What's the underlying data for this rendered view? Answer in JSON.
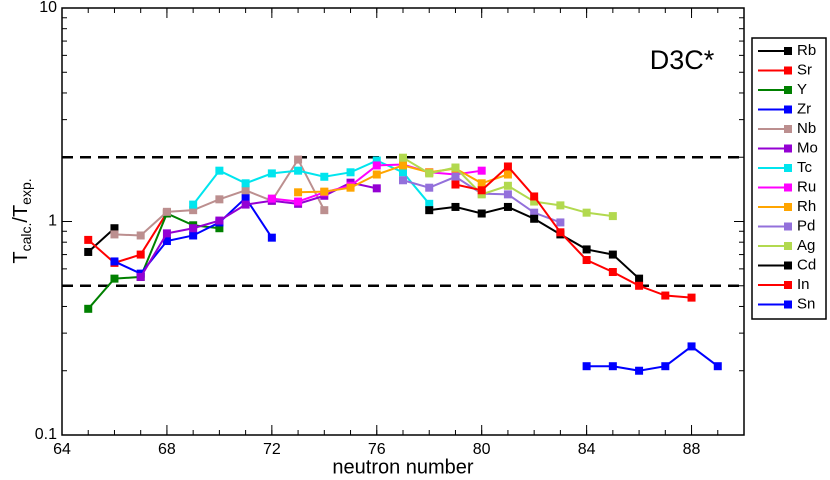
{
  "chart_data": {
    "type": "line",
    "annotation": "D3C*",
    "xlabel": "neutron number",
    "ylabel": {
      "main1": "T",
      "sub1": "calc.",
      "main2": "/T",
      "sub2": "exp."
    },
    "xlim": [
      64,
      90
    ],
    "xticks": [
      64,
      68,
      72,
      76,
      80,
      84,
      88
    ],
    "ylim": [
      0.1,
      10
    ],
    "yticks": [
      0.1,
      1,
      10
    ],
    "ylog": true,
    "reference_lines": [
      2,
      0.5
    ],
    "legend": "right",
    "series": [
      {
        "name": "Rb",
        "color": "#000000",
        "x": [
          65,
          66
        ],
        "values": [
          0.72,
          0.93
        ]
      },
      {
        "name": "Sr",
        "color": "#ff0000",
        "x": [
          65,
          66,
          67,
          68
        ],
        "values": [
          0.82,
          0.64,
          0.7,
          1.1
        ]
      },
      {
        "name": "Y",
        "color": "#008000",
        "x": [
          65,
          66,
          67,
          68,
          69,
          70
        ],
        "values": [
          0.39,
          0.54,
          0.55,
          1.09,
          0.96,
          0.93
        ]
      },
      {
        "name": "Zr",
        "color": "#0000ff",
        "x": [
          66,
          67,
          68,
          69,
          70,
          71,
          72
        ],
        "values": [
          0.65,
          0.57,
          0.81,
          0.86,
          0.99,
          1.29,
          0.84
        ]
      },
      {
        "name": "Nb",
        "color": "#bc8f8f",
        "x": [
          66,
          67,
          68,
          69,
          70,
          71,
          72,
          73,
          74
        ],
        "values": [
          0.87,
          0.86,
          1.11,
          1.13,
          1.27,
          1.4,
          1.25,
          1.95,
          1.13
        ]
      },
      {
        "name": "Mo",
        "color": "#9400d3",
        "x": [
          67,
          68,
          69,
          70,
          71,
          72,
          73,
          74,
          75,
          76
        ],
        "values": [
          0.55,
          0.88,
          0.93,
          1.01,
          1.2,
          1.25,
          1.21,
          1.32,
          1.52,
          1.43
        ]
      },
      {
        "name": "Tc",
        "color": "#00e5ee",
        "x": [
          69,
          70,
          71,
          72,
          73,
          74,
          75,
          76,
          77,
          78
        ],
        "values": [
          1.2,
          1.73,
          1.51,
          1.68,
          1.73,
          1.62,
          1.7,
          1.93,
          1.7,
          1.21
        ]
      },
      {
        "name": "Ru",
        "color": "#ff00ff",
        "x": [
          72,
          73,
          74,
          75,
          76,
          77,
          78,
          79,
          80
        ],
        "values": [
          1.28,
          1.24,
          1.37,
          1.47,
          1.83,
          1.85,
          1.7,
          1.66,
          1.73
        ]
      },
      {
        "name": "Rh",
        "color": "#ffa500",
        "x": [
          73,
          74,
          75,
          76,
          77,
          78,
          79,
          80,
          81
        ],
        "values": [
          1.37,
          1.38,
          1.44,
          1.66,
          1.83,
          1.7,
          1.77,
          1.51,
          1.66
        ]
      },
      {
        "name": "Pd",
        "color": "#9370db",
        "x": [
          77,
          78,
          79,
          80,
          81,
          82,
          83
        ],
        "values": [
          1.56,
          1.44,
          1.62,
          1.35,
          1.34,
          1.1,
          0.99
        ]
      },
      {
        "name": "Ag",
        "color": "#b2d94f",
        "x": [
          77,
          78,
          79,
          80,
          81,
          82,
          83,
          84,
          85
        ],
        "values": [
          1.99,
          1.68,
          1.79,
          1.34,
          1.47,
          1.24,
          1.19,
          1.1,
          1.06
        ]
      },
      {
        "name": "Cd",
        "color": "#000000",
        "x": [
          78,
          79,
          80,
          81,
          82,
          83,
          84,
          85,
          86
        ],
        "values": [
          1.13,
          1.17,
          1.09,
          1.17,
          1.03,
          0.87,
          0.74,
          0.7,
          0.54
        ]
      },
      {
        "name": "In",
        "color": "#ff0000",
        "x": [
          79,
          80,
          81,
          82,
          83,
          84,
          85,
          86,
          87,
          88
        ],
        "values": [
          1.49,
          1.4,
          1.81,
          1.31,
          0.89,
          0.66,
          0.58,
          0.5,
          0.45,
          0.44
        ]
      },
      {
        "name": "Sn",
        "color": "#0000ff",
        "x": [
          84,
          85,
          86,
          87,
          88,
          89
        ],
        "values": [
          0.21,
          0.21,
          0.2,
          0.21,
          0.26,
          0.21
        ]
      }
    ]
  }
}
